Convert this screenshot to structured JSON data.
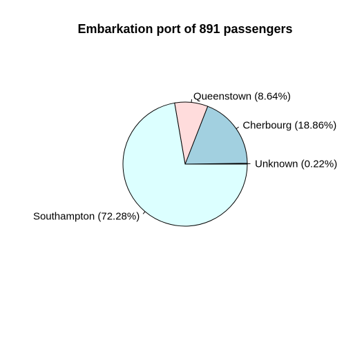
{
  "chart_data": {
    "type": "pie",
    "title": "Embarkation port of 891 passengers",
    "slices": [
      {
        "label": "Unknown (0.22%)",
        "value": 0.22,
        "color": "#ffffff"
      },
      {
        "label": "Cherbourg (18.86%)",
        "value": 18.86,
        "color": "#a2d0e0"
      },
      {
        "label": "Queenstown (8.64%)",
        "value": 8.64,
        "color": "#ffdcdc"
      },
      {
        "label": "Southampton (72.28%)",
        "value": 72.28,
        "color": "#dcffff"
      }
    ],
    "start_angle_deg": 0,
    "direction": "counterclockwise"
  }
}
